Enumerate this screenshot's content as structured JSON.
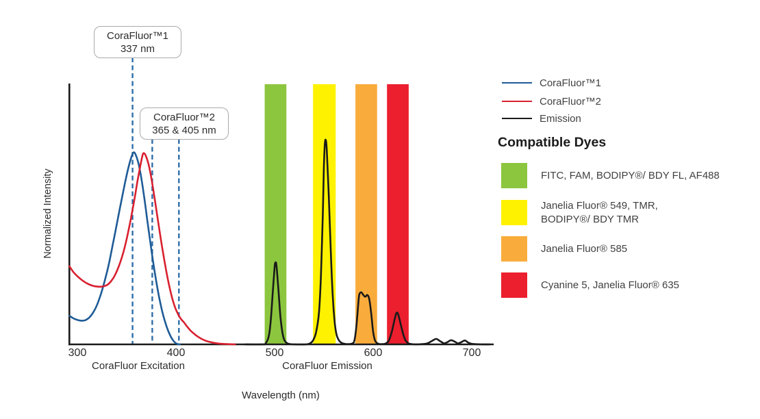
{
  "figure": {
    "y_axis_label": "Normalized Intensity",
    "x_axis_label": "Wavelength (nm)",
    "excitation_section_label": "CoraFluor Excitation",
    "emission_section_label": "CoraFluor Emission",
    "callouts": [
      {
        "line1": "CoraFluor™1",
        "line2": "337 nm"
      },
      {
        "line1": "CoraFluor™2",
        "line2": "365 & 405 nm"
      }
    ]
  },
  "legend": {
    "items": [
      {
        "label": "CoraFluor™1",
        "color": "#1E5B96"
      },
      {
        "label": "CoraFluor™2",
        "color": "#D8202F"
      },
      {
        "label": "Emission",
        "color": "#1a1a1a"
      }
    ]
  },
  "compatible_dyes": {
    "heading": "Compatible Dyes",
    "items": [
      {
        "name": "green",
        "color": "#8CC63F",
        "label": "FITC, FAM, BODIPY®/ BDY FL, AF488"
      },
      {
        "name": "yellow",
        "color": "#FFF200",
        "label": "Janelia Fluor® 549, TMR,\nBODIPY®/ BDY TMR"
      },
      {
        "name": "orange",
        "color": "#F9AC3C",
        "label": "Janelia Fluor® 585"
      },
      {
        "name": "red",
        "color": "#EB1F2E",
        "label": "Cyanine 5, Janelia Fluor® 635"
      }
    ]
  },
  "chart_data": {
    "type": "line",
    "title": "",
    "xlabel": "Wavelength (nm)",
    "ylabel": "Normalized Intensity",
    "x_ticks": [
      300,
      400,
      500,
      600,
      700
    ],
    "x_range_nm": [
      292,
      721
    ],
    "y_range": [
      0,
      1
    ],
    "grid": false,
    "legend_position": "right",
    "axis_color": "#1a1a1a",
    "tick_label_color": "#2b2b2b",
    "marker_color": "#2E6DA8",
    "markers_nm": [
      356,
      376,
      403
    ],
    "marker_nominal_labels": [
      "337 nm",
      "365 nm",
      "405 nm"
    ],
    "bands": [
      {
        "name": "green",
        "nm": [
          490,
          512
        ],
        "color": "#8CC63F"
      },
      {
        "name": "yellow",
        "nm": [
          539,
          562
        ],
        "color": "#FFF200"
      },
      {
        "name": "orange",
        "nm": [
          582,
          604
        ],
        "color": "#F9AC3C"
      },
      {
        "name": "red",
        "nm": [
          614,
          636
        ],
        "color": "#EB1F2E"
      }
    ],
    "series": [
      {
        "id": "corafluor1-excitation",
        "name": "CoraFluor™1",
        "color": "#1E5B96",
        "points": [
          [
            292,
            0.11
          ],
          [
            296,
            0.1
          ],
          [
            300,
            0.094
          ],
          [
            304,
            0.091
          ],
          [
            308,
            0.093
          ],
          [
            312,
            0.103
          ],
          [
            316,
            0.122
          ],
          [
            320,
            0.152
          ],
          [
            324,
            0.195
          ],
          [
            328,
            0.248
          ],
          [
            332,
            0.31
          ],
          [
            336,
            0.385
          ],
          [
            340,
            0.462
          ],
          [
            344,
            0.54
          ],
          [
            348,
            0.615
          ],
          [
            352,
            0.683
          ],
          [
            355,
            0.722
          ],
          [
            357,
            0.738
          ],
          [
            359,
            0.73
          ],
          [
            362,
            0.695
          ],
          [
            365,
            0.636
          ],
          [
            368,
            0.56
          ],
          [
            371,
            0.475
          ],
          [
            374,
            0.392
          ],
          [
            377,
            0.313
          ],
          [
            380,
            0.242
          ],
          [
            383,
            0.18
          ],
          [
            386,
            0.128
          ],
          [
            389,
            0.086
          ],
          [
            392,
            0.053
          ],
          [
            395,
            0.028
          ],
          [
            398,
            0.011
          ],
          [
            401,
            0.002
          ],
          [
            404,
            0.0
          ]
        ]
      },
      {
        "id": "corafluor2-excitation",
        "name": "CoraFluor™2",
        "color": "#D8202F",
        "points": [
          [
            292,
            0.3
          ],
          [
            296,
            0.278
          ],
          [
            300,
            0.262
          ],
          [
            305,
            0.246
          ],
          [
            310,
            0.234
          ],
          [
            315,
            0.226
          ],
          [
            320,
            0.222
          ],
          [
            325,
            0.222
          ],
          [
            330,
            0.228
          ],
          [
            334,
            0.242
          ],
          [
            338,
            0.265
          ],
          [
            342,
            0.3
          ],
          [
            346,
            0.345
          ],
          [
            350,
            0.405
          ],
          [
            354,
            0.478
          ],
          [
            358,
            0.56
          ],
          [
            361,
            0.628
          ],
          [
            364,
            0.69
          ],
          [
            366,
            0.725
          ],
          [
            367,
            0.735
          ],
          [
            369,
            0.728
          ],
          [
            372,
            0.695
          ],
          [
            375,
            0.64
          ],
          [
            378,
            0.57
          ],
          [
            381,
            0.495
          ],
          [
            384,
            0.42
          ],
          [
            387,
            0.35
          ],
          [
            390,
            0.285
          ],
          [
            393,
            0.228
          ],
          [
            396,
            0.18
          ],
          [
            399,
            0.143
          ],
          [
            402,
            0.117
          ],
          [
            405,
            0.098
          ],
          [
            408,
            0.085
          ],
          [
            411,
            0.07
          ],
          [
            414,
            0.056
          ],
          [
            418,
            0.042
          ],
          [
            422,
            0.03
          ],
          [
            426,
            0.021
          ],
          [
            431,
            0.013
          ],
          [
            437,
            0.007
          ],
          [
            444,
            0.003
          ],
          [
            452,
            0.001
          ],
          [
            460,
            0.0
          ]
        ]
      },
      {
        "id": "emission",
        "name": "Emission",
        "color": "#1a1a1a",
        "points": [
          [
            470,
            0.0
          ],
          [
            488,
            0.0
          ],
          [
            491,
            0.004
          ],
          [
            494,
            0.03
          ],
          [
            496,
            0.085
          ],
          [
            498,
            0.19
          ],
          [
            500,
            0.295
          ],
          [
            501,
            0.315
          ],
          [
            502,
            0.3
          ],
          [
            504,
            0.205
          ],
          [
            506,
            0.105
          ],
          [
            508,
            0.045
          ],
          [
            510,
            0.016
          ],
          [
            513,
            0.004
          ],
          [
            516,
            0.001
          ],
          [
            520,
            0.0
          ],
          [
            532,
            0.0
          ],
          [
            536,
            0.004
          ],
          [
            539,
            0.015
          ],
          [
            542,
            0.045
          ],
          [
            545,
            0.12
          ],
          [
            547,
            0.26
          ],
          [
            549,
            0.51
          ],
          [
            550,
            0.68
          ],
          [
            551,
            0.77
          ],
          [
            552,
            0.785
          ],
          [
            553,
            0.745
          ],
          [
            555,
            0.57
          ],
          [
            557,
            0.36
          ],
          [
            559,
            0.185
          ],
          [
            561,
            0.085
          ],
          [
            563,
            0.036
          ],
          [
            566,
            0.012
          ],
          [
            570,
            0.003
          ],
          [
            575,
            0.001
          ],
          [
            579,
            0.004
          ],
          [
            581,
            0.015
          ],
          [
            583,
            0.07
          ],
          [
            585,
            0.16
          ],
          [
            586,
            0.192
          ],
          [
            588,
            0.2
          ],
          [
            590,
            0.19
          ],
          [
            592,
            0.183
          ],
          [
            594,
            0.19
          ],
          [
            596,
            0.175
          ],
          [
            598,
            0.12
          ],
          [
            600,
            0.048
          ],
          [
            602,
            0.014
          ],
          [
            605,
            0.003
          ],
          [
            609,
            0.001
          ],
          [
            613,
            0.004
          ],
          [
            616,
            0.015
          ],
          [
            619,
            0.05
          ],
          [
            622,
            0.1
          ],
          [
            624,
            0.122
          ],
          [
            626,
            0.108
          ],
          [
            629,
            0.06
          ],
          [
            632,
            0.022
          ],
          [
            635,
            0.006
          ],
          [
            639,
            0.001
          ],
          [
            645,
            0.0
          ],
          [
            650,
            0.001
          ],
          [
            655,
            0.004
          ],
          [
            660,
            0.014
          ],
          [
            664,
            0.021
          ],
          [
            668,
            0.012
          ],
          [
            672,
            0.004
          ],
          [
            675,
            0.008
          ],
          [
            679,
            0.016
          ],
          [
            683,
            0.01
          ],
          [
            686,
            0.004
          ],
          [
            689,
            0.008
          ],
          [
            693,
            0.015
          ],
          [
            696,
            0.008
          ],
          [
            699,
            0.003
          ],
          [
            703,
            0.001
          ],
          [
            710,
            0.0
          ],
          [
            718,
            0.0
          ]
        ]
      }
    ]
  }
}
